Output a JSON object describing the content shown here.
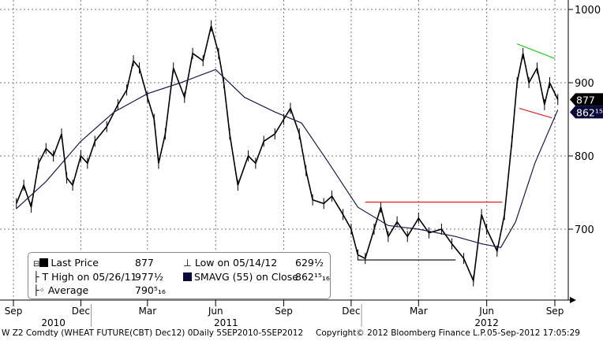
{
  "chart_data": {
    "type": "line",
    "title": "",
    "y_axis": {
      "position": "right",
      "ticks": [
        700,
        800,
        900,
        1000
      ],
      "range": [
        600,
        1010
      ]
    },
    "x_axis": {
      "month_labels": [
        {
          "label": "Sep",
          "date": "2010-09-01"
        },
        {
          "label": "Dec",
          "date": "2010-12-01"
        },
        {
          "label": "Mar",
          "date": "2011-03-01"
        },
        {
          "label": "Jun",
          "date": "2011-06-01"
        },
        {
          "label": "Sep",
          "date": "2011-09-01"
        },
        {
          "label": "Dec",
          "date": "2011-12-01"
        },
        {
          "label": "Mar",
          "date": "2012-03-01"
        },
        {
          "label": "Jun",
          "date": "2012-06-01"
        },
        {
          "label": "Sep",
          "date": "2012-09-01"
        }
      ],
      "year_labels": [
        {
          "label": "2010",
          "date": "2010-10-25"
        },
        {
          "label": "2011",
          "date": "2011-06-15"
        },
        {
          "label": "2012",
          "date": "2012-06-01"
        }
      ],
      "range": [
        "2010-09-05",
        "2012-09-05"
      ]
    },
    "grid": true,
    "series": [
      {
        "name": "Last Price",
        "color": "#000000",
        "points": [
          [
            "2010-09-05",
            735
          ],
          [
            "2010-09-15",
            760
          ],
          [
            "2010-09-25",
            730
          ],
          [
            "2010-10-05",
            790
          ],
          [
            "2010-10-15",
            810
          ],
          [
            "2010-10-25",
            800
          ],
          [
            "2010-11-05",
            830
          ],
          [
            "2010-11-12",
            770
          ],
          [
            "2010-11-20",
            760
          ],
          [
            "2010-12-01",
            800
          ],
          [
            "2010-12-10",
            790
          ],
          [
            "2010-12-20",
            820
          ],
          [
            "2011-01-05",
            840
          ],
          [
            "2011-01-20",
            870
          ],
          [
            "2011-02-01",
            890
          ],
          [
            "2011-02-10",
            930
          ],
          [
            "2011-02-18",
            920
          ],
          [
            "2011-03-01",
            880
          ],
          [
            "2011-03-10",
            850
          ],
          [
            "2011-03-16",
            790
          ],
          [
            "2011-03-25",
            830
          ],
          [
            "2011-04-05",
            920
          ],
          [
            "2011-04-20",
            880
          ],
          [
            "2011-05-01",
            940
          ],
          [
            "2011-05-15",
            930
          ],
          [
            "2011-05-26",
            977.5
          ],
          [
            "2011-06-05",
            940
          ],
          [
            "2011-06-12",
            900
          ],
          [
            "2011-06-20",
            830
          ],
          [
            "2011-07-01",
            760
          ],
          [
            "2011-07-15",
            800
          ],
          [
            "2011-07-25",
            790
          ],
          [
            "2011-08-05",
            820
          ],
          [
            "2011-08-20",
            830
          ],
          [
            "2011-09-01",
            850
          ],
          [
            "2011-09-10",
            865
          ],
          [
            "2011-09-22",
            830
          ],
          [
            "2011-10-01",
            780
          ],
          [
            "2011-10-10",
            740
          ],
          [
            "2011-10-25",
            735
          ],
          [
            "2011-11-05",
            745
          ],
          [
            "2011-11-20",
            720
          ],
          [
            "2011-12-01",
            700
          ],
          [
            "2011-12-10",
            665
          ],
          [
            "2011-12-20",
            660
          ],
          [
            "2012-01-01",
            700
          ],
          [
            "2012-01-10",
            730
          ],
          [
            "2012-01-20",
            690
          ],
          [
            "2012-02-01",
            710
          ],
          [
            "2012-02-15",
            690
          ],
          [
            "2012-03-01",
            715
          ],
          [
            "2012-03-15",
            695
          ],
          [
            "2012-04-01",
            700
          ],
          [
            "2012-04-15",
            680
          ],
          [
            "2012-05-01",
            660
          ],
          [
            "2012-05-14",
            629.5
          ],
          [
            "2012-05-25",
            720
          ],
          [
            "2012-06-01",
            700
          ],
          [
            "2012-06-15",
            670
          ],
          [
            "2012-06-25",
            720
          ],
          [
            "2012-07-05",
            820
          ],
          [
            "2012-07-12",
            900
          ],
          [
            "2012-07-20",
            940
          ],
          [
            "2012-07-28",
            900
          ],
          [
            "2012-08-08",
            920
          ],
          [
            "2012-08-18",
            870
          ],
          [
            "2012-08-25",
            900
          ],
          [
            "2012-09-05",
            877
          ]
        ]
      },
      {
        "name": "SMAVG (55) on Close",
        "color": "#1a1a4e",
        "points": [
          [
            "2010-09-05",
            728
          ],
          [
            "2010-10-15",
            765
          ],
          [
            "2010-12-01",
            820
          ],
          [
            "2011-01-15",
            860
          ],
          [
            "2011-03-01",
            885
          ],
          [
            "2011-04-15",
            900
          ],
          [
            "2011-06-01",
            918
          ],
          [
            "2011-07-10",
            880
          ],
          [
            "2011-08-20",
            860
          ],
          [
            "2011-09-25",
            845
          ],
          [
            "2011-11-01",
            790
          ],
          [
            "2011-12-10",
            730
          ],
          [
            "2012-01-20",
            705
          ],
          [
            "2012-03-01",
            700
          ],
          [
            "2012-04-20",
            690
          ],
          [
            "2012-05-25",
            680
          ],
          [
            "2012-06-20",
            675
          ],
          [
            "2012-07-10",
            710
          ],
          [
            "2012-08-05",
            790
          ],
          [
            "2012-09-05",
            862.9375
          ]
        ]
      }
    ],
    "trendlines": [
      {
        "color": "#e02020",
        "from": [
          "2011-12-20",
          737
        ],
        "to": [
          "2012-06-22",
          737
        ]
      },
      {
        "color": "#000000",
        "from": [
          "2011-12-10",
          658
        ],
        "to": [
          "2012-04-20",
          658
        ]
      },
      {
        "color": "#22cc22",
        "from": [
          "2012-07-12",
          953
        ],
        "to": [
          "2012-09-01",
          933
        ]
      },
      {
        "color": "#e02020",
        "from": [
          "2012-07-15",
          865
        ],
        "to": [
          "2012-08-28",
          852
        ]
      }
    ],
    "price_tags": [
      {
        "label": "877",
        "value": 877,
        "color": "#000000"
      },
      {
        "label": "862¹⁵₁₆",
        "value": 862.9375,
        "color": "#0a0a3a"
      }
    ],
    "legend": {
      "placement": "bottom-left",
      "last_price_label": "Last Price",
      "last_price_value": "877",
      "high_label": "High on 05/26/11",
      "high_value": "977½",
      "average_label": "Average",
      "average_value": "790⁵₁₆",
      "low_label": "Low on 05/14/12",
      "low_value": "629½",
      "smavg_label": "SMAVG (55) on Close",
      "smavg_value": "862¹⁵₁₆"
    }
  },
  "footer": {
    "ticker": "W Z2 Comdty (WHEAT FUTURE(CBT) Dec12) 0Daily 5SEP2010-5SEP2012",
    "copyright": "Copyright© 2012 Bloomberg Finance L.P.",
    "timestamp": "05-Sep-2012 17:05:29"
  }
}
